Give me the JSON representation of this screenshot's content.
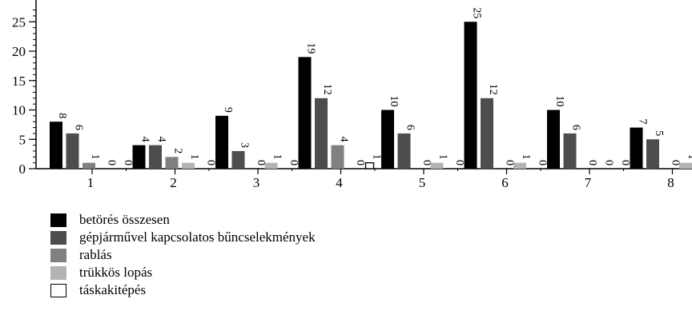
{
  "chart_data": {
    "type": "bar",
    "title": "",
    "xlabel": "",
    "ylabel": "",
    "ylim": [
      0,
      27
    ],
    "yticks": [
      0,
      5,
      10,
      15,
      20,
      25
    ],
    "categories": [
      "1",
      "2",
      "3",
      "4",
      "5",
      "6",
      "7",
      "8"
    ],
    "legend_position": "bottom-left",
    "data_labels": "rotated",
    "series": [
      {
        "name": "betörés összesen",
        "color": "#000000",
        "values": [
          8,
          4,
          9,
          19,
          10,
          25,
          10,
          7
        ]
      },
      {
        "name": "gépjárművel kapcsolatos bűncselekmények",
        "color": "#4d4d4d",
        "values": [
          6,
          4,
          3,
          12,
          6,
          12,
          6,
          5
        ]
      },
      {
        "name": "rablás",
        "color": "#808080",
        "values": [
          1,
          2,
          0,
          4,
          0,
          0,
          0,
          0
        ]
      },
      {
        "name": "trükkös lopás",
        "color": "#b3b3b3",
        "values": [
          0,
          1,
          1,
          0,
          1,
          1,
          0,
          1
        ]
      },
      {
        "name": "táskakitépés",
        "color": "#ffffff",
        "outline": true,
        "values": [
          0,
          0,
          0,
          1,
          0,
          0,
          0,
          0
        ]
      }
    ]
  }
}
